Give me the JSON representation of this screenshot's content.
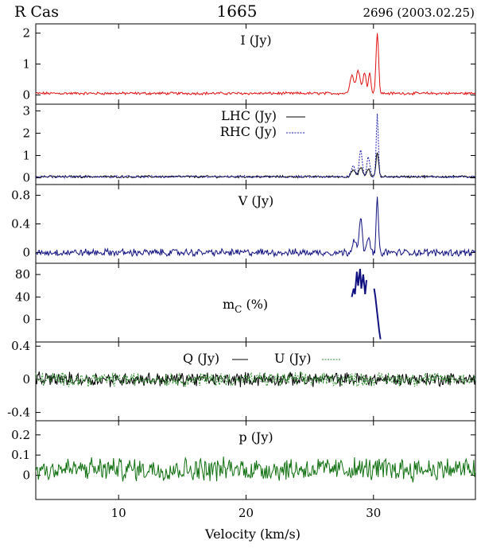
{
  "header": {
    "star": "R Cas",
    "frequency": "1665",
    "epoch": "2696 (2003.02.25)"
  },
  "chart_data": [
    {
      "type": "line",
      "label": "I (Jy)",
      "ylim": [
        -0.3,
        2.3
      ],
      "yticks": [
        0,
        1,
        2
      ],
      "series": [
        {
          "color": "#e01010",
          "style": "solid",
          "noise": 0.035,
          "baseline": 0.05,
          "features": [
            [
              28.3,
              0.15,
              0.6
            ],
            [
              28.8,
              0.15,
              0.75
            ],
            [
              29.3,
              0.12,
              0.7
            ],
            [
              29.7,
              0.1,
              0.65
            ],
            [
              30.3,
              0.1,
              1.95
            ]
          ]
        }
      ]
    },
    {
      "type": "line",
      "label": "LHC (Jy)",
      "label2": "RHC (Jy)",
      "ylim": [
        -0.3,
        3.3
      ],
      "yticks": [
        0,
        1,
        2,
        3
      ],
      "series": [
        {
          "color": "#000000",
          "style": "solid",
          "noise": 0.04,
          "baseline": 0.05,
          "features": [
            [
              28.4,
              0.15,
              0.3
            ],
            [
              29.0,
              0.15,
              0.4
            ],
            [
              29.6,
              0.12,
              0.35
            ],
            [
              30.3,
              0.1,
              1.1
            ]
          ]
        },
        {
          "color": "#2020b0",
          "style": "dotted",
          "noise": 0.04,
          "baseline": 0.05,
          "features": [
            [
              28.4,
              0.15,
              0.5
            ],
            [
              29.0,
              0.12,
              1.2
            ],
            [
              29.6,
              0.12,
              0.9
            ],
            [
              30.3,
              0.08,
              2.8
            ]
          ]
        }
      ]
    },
    {
      "type": "line",
      "label": "V (Jy)",
      "ylim": [
        -0.15,
        0.95
      ],
      "yticks": [
        0,
        0.4,
        0.8
      ],
      "series": [
        {
          "color": "#101080",
          "style": "solid",
          "noise": 0.04,
          "baseline": 0.0,
          "features": [
            [
              28.5,
              0.15,
              0.2
            ],
            [
              29.0,
              0.12,
              0.45
            ],
            [
              29.6,
              0.1,
              0.25
            ],
            [
              30.3,
              0.08,
              0.8
            ]
          ]
        }
      ]
    },
    {
      "type": "line",
      "label": "m",
      "label_sub": "C",
      "label_unit": " (%)",
      "ylim": [
        -40,
        100
      ],
      "yticks": [
        0,
        40,
        80
      ],
      "segments": [
        {
          "color": "#101080",
          "points": [
            [
              28.3,
              40
            ],
            [
              28.45,
              55
            ],
            [
              28.55,
              45
            ],
            [
              28.7,
              85
            ],
            [
              28.8,
              60
            ],
            [
              28.95,
              90
            ],
            [
              29.05,
              55
            ],
            [
              29.2,
              80
            ],
            [
              29.35,
              45
            ],
            [
              29.45,
              70
            ]
          ]
        },
        {
          "color": "#101080",
          "points": [
            [
              30.05,
              55
            ],
            [
              30.15,
              40
            ],
            [
              30.25,
              20
            ],
            [
              30.35,
              0
            ],
            [
              30.45,
              -20
            ],
            [
              30.55,
              -35
            ]
          ]
        }
      ]
    },
    {
      "type": "line",
      "label": "Q (Jy)",
      "label2": "U (Jy)",
      "ylim": [
        -0.5,
        0.45
      ],
      "yticks": [
        -0.4,
        0,
        0.4
      ],
      "series": [
        {
          "color": "#000000",
          "style": "solid",
          "noise": 0.065,
          "baseline": 0.0,
          "features": []
        },
        {
          "color": "#2a8a2a",
          "style": "dotted",
          "noise": 0.065,
          "baseline": 0.0,
          "features": []
        }
      ]
    },
    {
      "type": "line",
      "label": "p (Jy)",
      "ylim": [
        -0.12,
        0.27
      ],
      "yticks": [
        0,
        0.1,
        0.2
      ],
      "series": [
        {
          "color": "#107010",
          "style": "solid",
          "noise": 0.045,
          "baseline": 0.03,
          "features": []
        }
      ]
    }
  ],
  "xaxis": {
    "xlim": [
      3.5,
      38.0
    ],
    "ticks": [
      10,
      20,
      30
    ],
    "label": "Velocity (km/s)"
  }
}
